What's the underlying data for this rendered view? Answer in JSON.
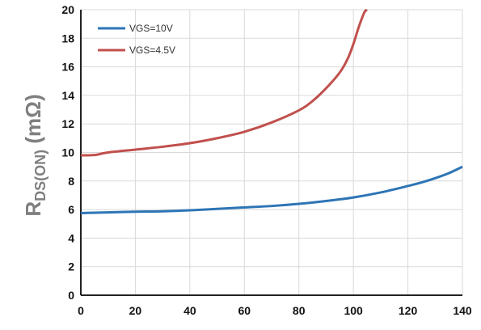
{
  "chart_data": {
    "type": "line",
    "title": "",
    "xlabel": "",
    "ylabel": {
      "main": "R",
      "sub": "DS(ON)",
      "unit": " (mΩ)"
    },
    "xlim": [
      0,
      140
    ],
    "ylim": [
      0,
      20
    ],
    "x_ticks": [
      0,
      20,
      40,
      60,
      80,
      100,
      120,
      140
    ],
    "y_ticks": [
      0,
      2,
      4,
      6,
      8,
      10,
      12,
      14,
      16,
      18,
      20
    ],
    "grid": true,
    "legend_position": "top-left",
    "series": [
      {
        "name": "VGS=10V",
        "color": "#2e75b6",
        "x": [
          0,
          5,
          10,
          20,
          30,
          40,
          50,
          60,
          70,
          80,
          90,
          100,
          110,
          120,
          125,
          130,
          135,
          140
        ],
        "y": [
          5.75,
          5.78,
          5.8,
          5.85,
          5.88,
          5.95,
          6.05,
          6.15,
          6.25,
          6.4,
          6.6,
          6.85,
          7.2,
          7.65,
          7.9,
          8.2,
          8.55,
          9.0
        ]
      },
      {
        "name": "VGS=4.5V",
        "color": "#c0504d",
        "x": [
          0,
          5,
          10,
          20,
          30,
          40,
          50,
          60,
          70,
          80,
          85,
          90,
          95,
          98,
          100,
          102,
          104,
          105
        ],
        "y": [
          9.8,
          9.82,
          10.0,
          10.2,
          10.4,
          10.65,
          11.0,
          11.45,
          12.1,
          12.95,
          13.6,
          14.5,
          15.6,
          16.6,
          17.6,
          18.8,
          19.8,
          20.0
        ]
      }
    ]
  }
}
